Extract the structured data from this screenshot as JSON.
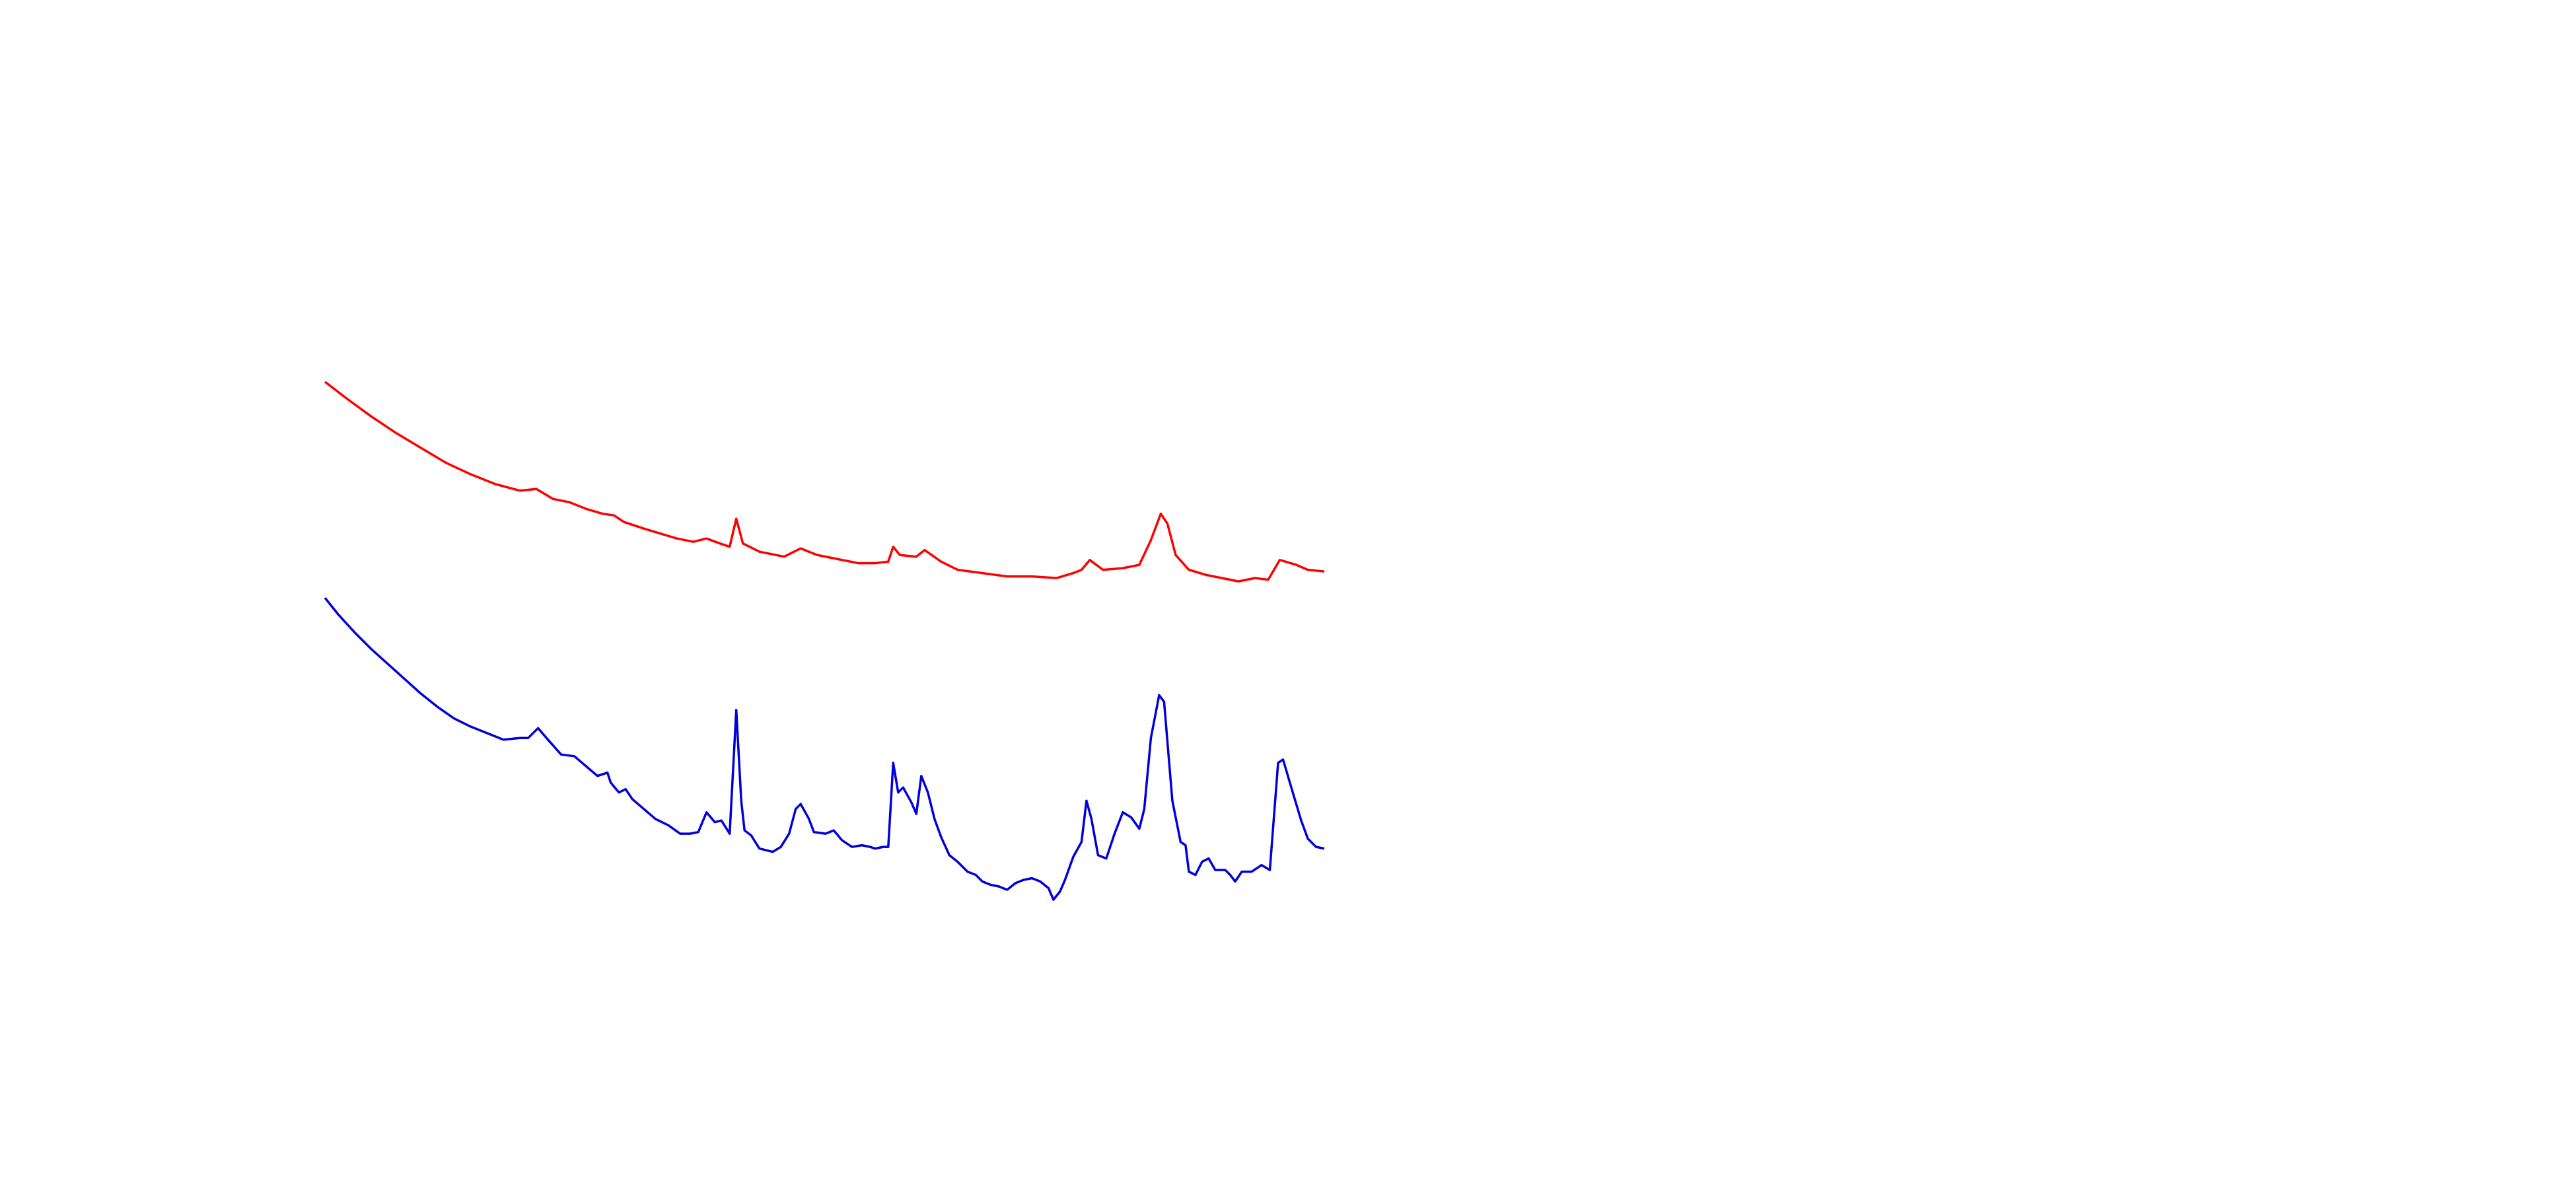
{
  "chart_data": {
    "type": "line",
    "series": [
      {
        "color": "#ff0000",
        "x": [
          197,
          210,
          225,
          240,
          255,
          270,
          285,
          300,
          315,
          325,
          335,
          345,
          355,
          365,
          372,
          378,
          390,
          400,
          410,
          420,
          428,
          436,
          442,
          446,
          450,
          460,
          475,
          485,
          495,
          510,
          520,
          530,
          538,
          541,
          545,
          555,
          560,
          570,
          580,
          595,
          610,
          625,
          640,
          650,
          655,
          660,
          668,
          680,
          690,
          697,
          703,
          707,
          712,
          720,
          730,
          740,
          750,
          760,
          768,
          775,
          785,
          792,
          802
        ],
        "values": [
          369,
          359,
          348,
          338,
          329,
          320,
          313,
          307,
          303,
          304,
          298,
          296,
          292,
          289,
          288,
          284,
          280,
          277,
          274,
          272,
          274,
          271,
          269,
          286,
          271,
          266,
          263,
          268,
          264,
          261,
          259,
          259,
          260,
          269,
          264,
          263,
          267,
          260,
          255,
          253,
          251,
          251,
          250,
          253,
          255,
          261,
          255,
          256,
          258,
          273,
          289,
          283,
          264,
          255,
          252,
          250,
          248,
          250,
          249,
          261,
          258,
          255,
          254
        ]
      },
      {
        "color": "#0000dd",
        "x": [
          197,
          205,
          215,
          225,
          235,
          245,
          255,
          265,
          275,
          285,
          295,
          305,
          315,
          320,
          326,
          332,
          340,
          348,
          355,
          362,
          368,
          370,
          375,
          379,
          383,
          390,
          397,
          405,
          412,
          418,
          423,
          428,
          433,
          437,
          442,
          446,
          449,
          451,
          455,
          460,
          468,
          473,
          478,
          482,
          485,
          490,
          493,
          500,
          505,
          510,
          516,
          522,
          527,
          530,
          535,
          538,
          541,
          544,
          547,
          552,
          555,
          558,
          562,
          566,
          570,
          575,
          580,
          586,
          591,
          595,
          600,
          605,
          610,
          615,
          620,
          625,
          630,
          635,
          638,
          642,
          645,
          650,
          655,
          658,
          661,
          665,
          670,
          675,
          680,
          685,
          690,
          693,
          697,
          702,
          705,
          710,
          715,
          718,
          720,
          724,
          728,
          732,
          736,
          742,
          745,
          748,
          752,
          758,
          764,
          769,
          774,
          777,
          782,
          788,
          792,
          797,
          802
        ],
        "values": [
          238,
          228,
          217,
          207,
          198,
          189,
          180,
          172,
          165,
          160,
          156,
          152,
          153,
          153,
          159,
          152,
          143,
          142,
          136,
          130,
          132,
          126,
          120,
          122,
          116,
          110,
          104,
          100,
          95,
          95,
          96,
          108,
          102,
          103,
          95,
          170,
          115,
          97,
          94,
          86,
          84,
          87,
          95,
          110,
          113,
          104,
          96,
          95,
          97,
          91,
          87,
          88,
          87,
          86,
          87,
          87,
          138,
          120,
          123,
          114,
          107,
          130,
          120,
          104,
          93,
          82,
          78,
          72,
          70,
          66,
          64,
          63,
          61,
          65,
          67,
          68,
          66,
          62,
          55,
          60,
          67,
          81,
          90,
          115,
          104,
          82,
          80,
          95,
          108,
          105,
          98,
          110,
          153,
          179,
          175,
          115,
          90,
          88,
          72,
          70,
          78,
          80,
          73,
          73,
          70,
          66,
          72,
          72,
          76,
          73,
          138,
          140,
          123,
          103,
          92,
          87,
          86
        ]
      }
    ]
  }
}
